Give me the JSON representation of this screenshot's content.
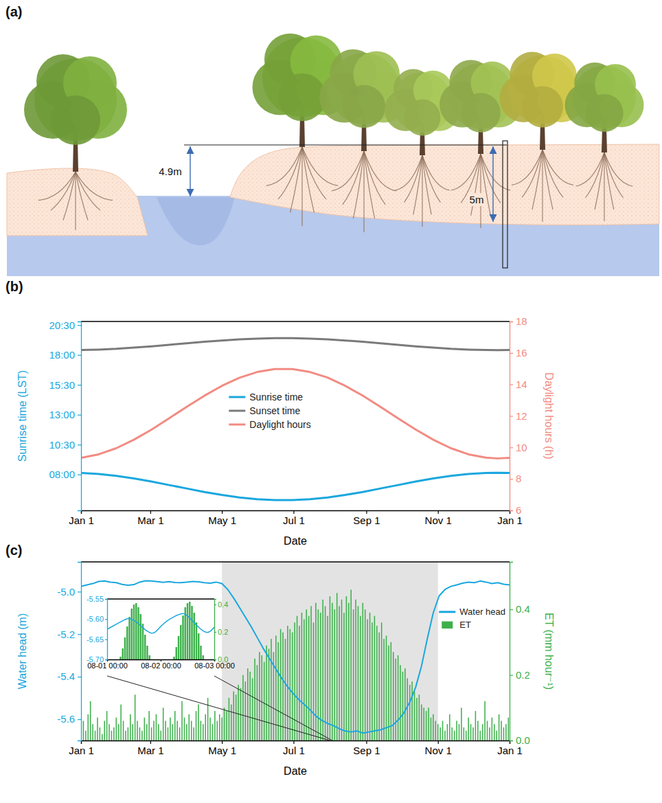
{
  "diagram": {
    "panel_label": "(a)",
    "labels": [
      "4.9m",
      "5m"
    ]
  },
  "chart_data": [
    {
      "type": "line",
      "panel_label": "(b)",
      "x_label": "Date",
      "y_label": "Sunrise time (LST)",
      "y2_label": "Daylight hours (h)",
      "x": [
        0,
        15,
        30,
        45,
        60,
        75,
        90,
        105,
        120,
        135,
        150,
        165,
        180,
        195,
        210,
        225,
        240,
        255,
        270,
        285,
        300,
        315,
        330,
        345,
        355,
        365
      ],
      "xlim": [
        0,
        365
      ],
      "xticks": [
        {
          "value": 0,
          "label": "Jan 1"
        },
        {
          "value": 59,
          "label": "Mar 1"
        },
        {
          "value": 120,
          "label": "May 1"
        },
        {
          "value": 181,
          "label": "Jul 1"
        },
        {
          "value": 243,
          "label": "Sep 1"
        },
        {
          "value": 304,
          "label": "Nov 1"
        },
        {
          "value": 365,
          "label": "Jan 1"
        }
      ],
      "ylim": [
        5,
        20.8
      ],
      "yticks": [
        {
          "value": 8,
          "label": "08:00"
        },
        {
          "value": 10.5,
          "label": "10:30"
        },
        {
          "value": 13,
          "label": "13:00"
        },
        {
          "value": 15.5,
          "label": "15:30"
        },
        {
          "value": 18,
          "label": "18:00"
        },
        {
          "value": 20.5,
          "label": "20:30"
        }
      ],
      "y2lim": [
        6,
        18
      ],
      "y2ticks": [
        6,
        8,
        10,
        12,
        14,
        16,
        18
      ],
      "legend": "center",
      "series": [
        {
          "name": "Sunrise time",
          "color": "#1aa7de",
          "values": [
            8.13,
            8.05,
            7.89,
            7.67,
            7.41,
            7.12,
            6.83,
            6.54,
            6.29,
            6.08,
            5.94,
            5.86,
            5.86,
            5.94,
            6.08,
            6.29,
            6.54,
            6.83,
            7.12,
            7.41,
            7.67,
            7.89,
            8.05,
            8.13,
            8.15,
            8.13
          ]
        },
        {
          "name": "Sunset time",
          "color": "#7a7a7a",
          "values": [
            18.41,
            18.45,
            18.51,
            18.61,
            18.72,
            18.85,
            18.98,
            19.1,
            19.21,
            19.3,
            19.36,
            19.4,
            19.4,
            19.36,
            19.3,
            19.21,
            19.1,
            18.98,
            18.85,
            18.72,
            18.61,
            18.51,
            18.45,
            18.41,
            18.4,
            18.41
          ]
        },
        {
          "name": "Daylight hours",
          "color": "#f28b82",
          "axis": "y2",
          "values": [
            9.34,
            9.56,
            9.95,
            10.49,
            11.13,
            11.85,
            12.58,
            13.28,
            13.91,
            14.43,
            14.79,
            14.98,
            14.98,
            14.79,
            14.44,
            13.91,
            13.29,
            12.58,
            11.85,
            11.14,
            10.49,
            9.95,
            9.56,
            9.35,
            9.3,
            9.34
          ]
        }
      ]
    },
    {
      "type": "line",
      "panel_label": "(c)",
      "x_label": "Date",
      "y_label": "Water head (m)",
      "y2_label": "ET (mm hour⁻¹)",
      "xlim": [
        0,
        365
      ],
      "xticks": [
        {
          "value": 0,
          "label": "Jan 1"
        },
        {
          "value": 59,
          "label": "Mar 1"
        },
        {
          "value": 120,
          "label": "May 1"
        },
        {
          "value": 181,
          "label": "Jul 1"
        },
        {
          "value": 243,
          "label": "Sep 1"
        },
        {
          "value": 304,
          "label": "Nov 1"
        },
        {
          "value": 365,
          "label": "Jan 1"
        }
      ],
      "ylim": [
        -5.7,
        -4.86
      ],
      "yticks": [
        {
          "value": -5,
          "label": "-5.0"
        },
        -5.2,
        -5.4,
        -5.6
      ],
      "y2lim": [
        0,
        0.545
      ],
      "y2ticks": [
        {
          "value": 0,
          "label": "0.0"
        },
        0.2,
        0.4
      ],
      "shaded_span": [
        120,
        304
      ],
      "legend": "upper right",
      "series": [
        {
          "name": "Water head",
          "type": "line",
          "color": "#1aa7de",
          "x": [
            0,
            5,
            10,
            15,
            20,
            25,
            30,
            35,
            40,
            45,
            50,
            55,
            60,
            65,
            70,
            75,
            80,
            85,
            90,
            95,
            100,
            105,
            110,
            115,
            120,
            125,
            130,
            135,
            140,
            145,
            150,
            155,
            160,
            165,
            170,
            175,
            180,
            185,
            190,
            195,
            200,
            205,
            210,
            215,
            220,
            225,
            230,
            235,
            240,
            245,
            250,
            255,
            260,
            265,
            270,
            275,
            280,
            285,
            290,
            295,
            300,
            305,
            310,
            315,
            320,
            325,
            330,
            335,
            340,
            345,
            350,
            355,
            360,
            365
          ],
          "values": [
            -4.975,
            -4.968,
            -4.962,
            -4.952,
            -4.95,
            -4.955,
            -4.958,
            -4.966,
            -4.97,
            -4.967,
            -4.955,
            -4.949,
            -4.95,
            -4.953,
            -4.956,
            -4.953,
            -4.957,
            -4.958,
            -4.955,
            -4.952,
            -4.954,
            -4.958,
            -4.96,
            -4.955,
            -4.962,
            -4.99,
            -5.03,
            -5.075,
            -5.12,
            -5.165,
            -5.215,
            -5.265,
            -5.31,
            -5.355,
            -5.4,
            -5.44,
            -5.475,
            -5.505,
            -5.53,
            -5.555,
            -5.585,
            -5.605,
            -5.62,
            -5.63,
            -5.645,
            -5.655,
            -5.66,
            -5.655,
            -5.665,
            -5.66,
            -5.655,
            -5.65,
            -5.64,
            -5.63,
            -5.605,
            -5.57,
            -5.52,
            -5.45,
            -5.35,
            -5.22,
            -5.1,
            -5.02,
            -4.99,
            -4.975,
            -4.968,
            -4.96,
            -4.955,
            -4.958,
            -4.95,
            -4.955,
            -4.962,
            -4.958,
            -4.965,
            -4.968
          ]
        },
        {
          "name": "ET",
          "type": "bar",
          "color": "#3db04b",
          "axis": "y2",
          "x": [
            0,
            2,
            4,
            6,
            8,
            10,
            12,
            14,
            16,
            18,
            20,
            22,
            24,
            26,
            28,
            30,
            32,
            34,
            36,
            38,
            40,
            42,
            44,
            46,
            48,
            50,
            52,
            54,
            56,
            58,
            60,
            62,
            64,
            66,
            68,
            70,
            72,
            74,
            76,
            78,
            80,
            82,
            84,
            86,
            88,
            90,
            92,
            94,
            96,
            98,
            100,
            102,
            104,
            106,
            108,
            110,
            112,
            114,
            116,
            118,
            120,
            122,
            124,
            126,
            128,
            130,
            132,
            134,
            136,
            138,
            140,
            142,
            144,
            146,
            148,
            150,
            152,
            154,
            156,
            158,
            160,
            162,
            164,
            166,
            168,
            170,
            172,
            174,
            176,
            178,
            180,
            182,
            184,
            186,
            188,
            190,
            192,
            194,
            196,
            198,
            200,
            202,
            204,
            206,
            208,
            210,
            212,
            214,
            216,
            218,
            220,
            222,
            224,
            226,
            228,
            230,
            232,
            234,
            236,
            238,
            240,
            242,
            244,
            246,
            248,
            250,
            252,
            254,
            256,
            258,
            260,
            262,
            264,
            266,
            268,
            270,
            272,
            274,
            276,
            278,
            280,
            282,
            284,
            286,
            288,
            290,
            292,
            294,
            296,
            298,
            300,
            302,
            304,
            306,
            308,
            310,
            312,
            314,
            316,
            318,
            320,
            322,
            324,
            326,
            328,
            330,
            332,
            334,
            336,
            338,
            340,
            342,
            344,
            346,
            348,
            350,
            352,
            354,
            356,
            358,
            360,
            362,
            364
          ],
          "values": [
            0.04,
            0.06,
            0.03,
            0.08,
            0.12,
            0.05,
            0.03,
            0.07,
            0.04,
            0.02,
            0.06,
            0.09,
            0.05,
            0.03,
            0.04,
            0.07,
            0.05,
            0.11,
            0.06,
            0.03,
            0.04,
            0.08,
            0.05,
            0.14,
            0.06,
            0.04,
            0.03,
            0.07,
            0.05,
            0.09,
            0.04,
            0.06,
            0.08,
            0.05,
            0.03,
            0.1,
            0.06,
            0.04,
            0.07,
            0.05,
            0.09,
            0.06,
            0.04,
            0.12,
            0.07,
            0.05,
            0.08,
            0.06,
            0.04,
            0.09,
            0.11,
            0.06,
            0.05,
            0.08,
            0.13,
            0.07,
            0.05,
            0.09,
            0.06,
            0.08,
            0.07,
            0.1,
            0.09,
            0.13,
            0.11,
            0.15,
            0.14,
            0.17,
            0.16,
            0.2,
            0.18,
            0.22,
            0.21,
            0.19,
            0.25,
            0.23,
            0.27,
            0.26,
            0.24,
            0.29,
            0.28,
            0.31,
            0.27,
            0.32,
            0.3,
            0.34,
            0.33,
            0.31,
            0.35,
            0.34,
            0.33,
            0.36,
            0.38,
            0.35,
            0.39,
            0.37,
            0.4,
            0.38,
            0.41,
            0.36,
            0.42,
            0.4,
            0.39,
            0.43,
            0.41,
            0.38,
            0.44,
            0.42,
            0.4,
            0.45,
            0.41,
            0.43,
            0.39,
            0.44,
            0.42,
            0.46,
            0.4,
            0.43,
            0.41,
            0.38,
            0.42,
            0.4,
            0.37,
            0.39,
            0.36,
            0.38,
            0.35,
            0.33,
            0.36,
            0.31,
            0.32,
            0.29,
            0.3,
            0.27,
            0.25,
            0.26,
            0.23,
            0.21,
            0.22,
            0.19,
            0.17,
            0.18,
            0.15,
            0.13,
            0.14,
            0.11,
            0.1,
            0.09,
            0.1,
            0.07,
            0.08,
            0.06,
            0.05,
            0.04,
            0.06,
            0.03,
            0.05,
            0.08,
            0.04,
            0.03,
            0.06,
            0.05,
            0.1,
            0.04,
            0.03,
            0.07,
            0.05,
            0.04,
            0.09,
            0.06,
            0.03,
            0.05,
            0.12,
            0.06,
            0.04,
            0.07,
            0.05,
            0.03,
            0.08,
            0.06,
            0.04,
            0.05,
            0.07
          ]
        }
      ]
    },
    {
      "type": "line",
      "zoom_span": [
        212,
        214
      ],
      "xlim": [
        0,
        48
      ],
      "xticks": [
        {
          "value": 0,
          "label": "08-01 00:00"
        },
        {
          "value": 24,
          "label": "08-02 00:00"
        },
        {
          "value": 48,
          "label": "08-03 00:00"
        }
      ],
      "ylim": [
        -5.7,
        -5.55
      ],
      "yticks": [
        -5.55,
        {
          "value": -5.6,
          "label": "-5.60"
        },
        -5.65,
        {
          "value": -5.7,
          "label": "-5.70"
        }
      ],
      "y2lim": [
        0,
        0.44
      ],
      "y2ticks": [
        {
          "value": 0,
          "label": "0.0"
        },
        0.2,
        0.4
      ],
      "series": [
        {
          "type": "line",
          "color": "#1aa7de",
          "x": [
            0,
            1,
            2,
            3,
            4,
            5,
            6,
            7,
            8,
            9,
            10,
            11,
            12,
            13,
            14,
            15,
            16,
            17,
            18,
            19,
            20,
            21,
            22,
            23,
            24,
            25,
            26,
            27,
            28,
            29,
            30,
            31,
            32,
            33,
            34,
            35,
            36,
            37,
            38,
            39,
            40,
            41,
            42,
            43,
            44,
            45,
            46,
            47,
            48
          ],
          "values": [
            -5.625,
            -5.622,
            -5.619,
            -5.616,
            -5.613,
            -5.61,
            -5.607,
            -5.604,
            -5.601,
            -5.599,
            -5.598,
            -5.6,
            -5.603,
            -5.607,
            -5.611,
            -5.616,
            -5.621,
            -5.626,
            -5.63,
            -5.633,
            -5.635,
            -5.634,
            -5.63,
            -5.624,
            -5.618,
            -5.613,
            -5.608,
            -5.604,
            -5.6,
            -5.597,
            -5.594,
            -5.591,
            -5.589,
            -5.587,
            -5.586,
            -5.588,
            -5.592,
            -5.597,
            -5.603,
            -5.609,
            -5.615,
            -5.62,
            -5.625,
            -5.629,
            -5.632,
            -5.633,
            -5.631,
            -5.626,
            -5.62
          ]
        },
        {
          "type": "bar",
          "color": "#3db04b",
          "axis": "y2",
          "x": [
            0,
            1,
            2,
            3,
            4,
            5,
            6,
            7,
            8,
            9,
            10,
            11,
            12,
            13,
            14,
            15,
            16,
            17,
            18,
            19,
            20,
            21,
            22,
            23,
            24,
            25,
            26,
            27,
            28,
            29,
            30,
            31,
            32,
            33,
            34,
            35,
            36,
            37,
            38,
            39,
            40,
            41,
            42,
            43,
            44,
            45,
            46,
            47
          ],
          "values": [
            0,
            0,
            0,
            0,
            0,
            0,
            0.02,
            0.08,
            0.16,
            0.24,
            0.31,
            0.37,
            0.4,
            0.41,
            0.38,
            0.33,
            0.26,
            0.18,
            0.1,
            0.03,
            0,
            0,
            0,
            0,
            0,
            0,
            0,
            0,
            0,
            0,
            0.02,
            0.09,
            0.17,
            0.25,
            0.32,
            0.38,
            0.41,
            0.42,
            0.39,
            0.34,
            0.27,
            0.19,
            0.1,
            0.03,
            0,
            0,
            0,
            0
          ]
        }
      ]
    }
  ]
}
